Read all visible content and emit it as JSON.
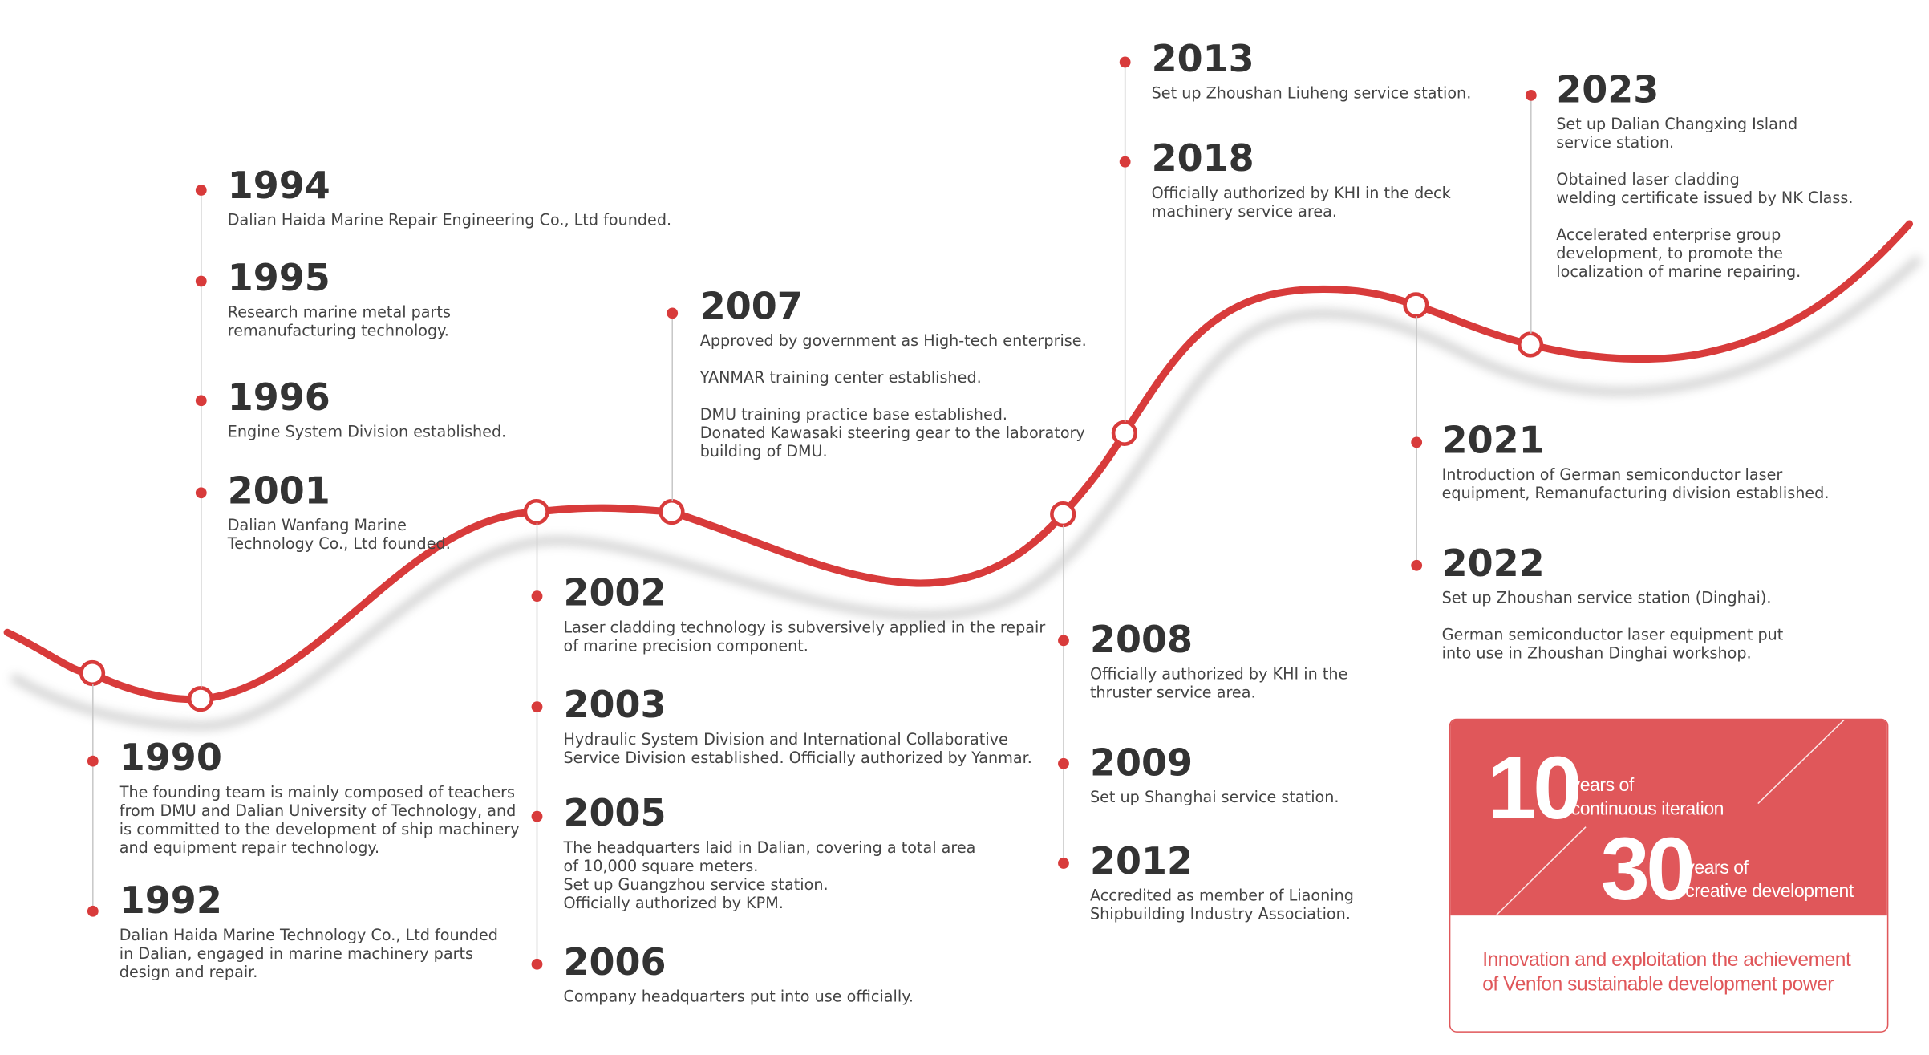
{
  "theme": {
    "accent": "#d83b3b",
    "panel": "#e0575a"
  },
  "timeline": [
    {
      "year": "1990",
      "text": "The founding team is mainly composed of teachers\nfrom DMU and Dalian University of Technology, and\nis committed to the development of ship machinery\nand equipment repair technology."
    },
    {
      "year": "1992",
      "text": "Dalian Haida Marine Technology Co., Ltd founded\nin Dalian, engaged in marine machinery parts\ndesign and repair."
    },
    {
      "year": "1994",
      "text": "Dalian Haida Marine Repair Engineering Co., Ltd founded."
    },
    {
      "year": "1995",
      "text": "Research marine metal parts\nremanufacturing technology."
    },
    {
      "year": "1996",
      "text": "Engine System Division established."
    },
    {
      "year": "2001",
      "text": "Dalian Wanfang Marine\nTechnology Co., Ltd founded."
    },
    {
      "year": "2002",
      "text": "Laser cladding technology is subversively applied in the repair\nof marine precision component."
    },
    {
      "year": "2003",
      "text": "Hydraulic System Division and International Collaborative\nService Division established. Officially authorized by Yanmar."
    },
    {
      "year": "2005",
      "text": "The headquarters laid in Dalian, covering a total area\nof 10,000 square meters.\nSet up Guangzhou service station.\nOfficially authorized by KPM."
    },
    {
      "year": "2006",
      "text": "Company headquarters put into use officially."
    },
    {
      "year": "2007",
      "text": "Approved by government as High-tech enterprise.\n\nYANMAR training center established.\n\nDMU training practice base established.\nDonated Kawasaki steering gear to the laboratory\nbuilding of DMU."
    },
    {
      "year": "2008",
      "text": "Officially authorized by KHI in the\nthruster service area."
    },
    {
      "year": "2009",
      "text": "Set up Shanghai service station."
    },
    {
      "year": "2012",
      "text": "Accredited as member of Liaoning\nShipbuilding Industry Association."
    },
    {
      "year": "2013",
      "text": "Set up Zhoushan Liuheng service station."
    },
    {
      "year": "2018",
      "text": "Officially authorized by KHI in the deck\nmachinery service area."
    },
    {
      "year": "2021",
      "text": "Introduction of German semiconductor laser\nequipment, Remanufacturing division established."
    },
    {
      "year": "2022",
      "text": "Set up Zhoushan service station (Dinghai).\n\nGerman semiconductor laser equipment put\ninto use in Zhoushan Dinghai workshop."
    },
    {
      "year": "2023",
      "text": "Set up Dalian Changxing Island\nservice station.\n\nObtained laser cladding\nwelding certificate issued by NK Class.\n\nAccelerated enterprise group\ndevelopment, to promote the\nlocalization of marine repairing."
    }
  ],
  "highlight": {
    "num1": "10",
    "label1": "years of\ncontinuous iteration",
    "num2": "30",
    "label2": "years of\ncreative development",
    "tagline": "Innovation and exploitation the achievement\nof Venfon sustainable development power"
  }
}
